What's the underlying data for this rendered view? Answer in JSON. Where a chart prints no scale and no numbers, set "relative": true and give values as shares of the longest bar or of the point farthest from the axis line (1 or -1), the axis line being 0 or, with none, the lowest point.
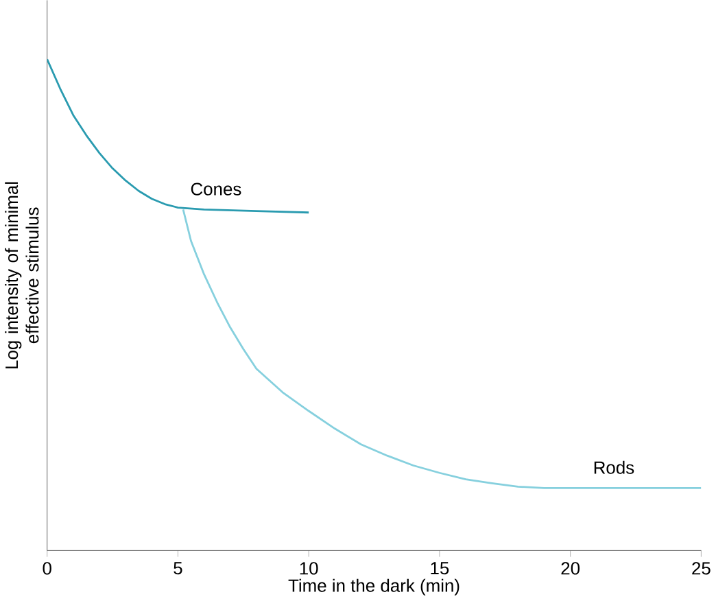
{
  "chart_data": {
    "type": "line",
    "relative": true,
    "xlabel": "Time in the dark (min)",
    "ylabel": "Log intensity of minimal effective stimulus",
    "xlim": [
      0,
      25
    ],
    "xticks": [
      0,
      5,
      10,
      15,
      20,
      25
    ],
    "grid": false,
    "marker": "none",
    "line_style": "solid",
    "series": [
      {
        "name": "Cones",
        "color": "#2a9bb0",
        "x": [
          0,
          0.5,
          1,
          1.5,
          2,
          2.5,
          3,
          3.5,
          4,
          4.5,
          5,
          6,
          8,
          10
        ],
        "values": [
          1.0,
          0.94,
          0.886,
          0.845,
          0.809,
          0.778,
          0.753,
          0.732,
          0.716,
          0.705,
          0.698,
          0.694,
          0.691,
          0.688
        ]
      },
      {
        "name": "Rods",
        "color": "#86d0de",
        "x": [
          5.2,
          5.5,
          6,
          6.5,
          7,
          7.5,
          8,
          9,
          10,
          11,
          12,
          13,
          14,
          15,
          16,
          17,
          18,
          19,
          22,
          25
        ],
        "values": [
          0.694,
          0.63,
          0.562,
          0.505,
          0.454,
          0.41,
          0.37,
          0.322,
          0.284,
          0.248,
          0.216,
          0.193,
          0.173,
          0.158,
          0.145,
          0.137,
          0.13,
          0.127,
          0.127,
          0.127
        ]
      }
    ]
  }
}
